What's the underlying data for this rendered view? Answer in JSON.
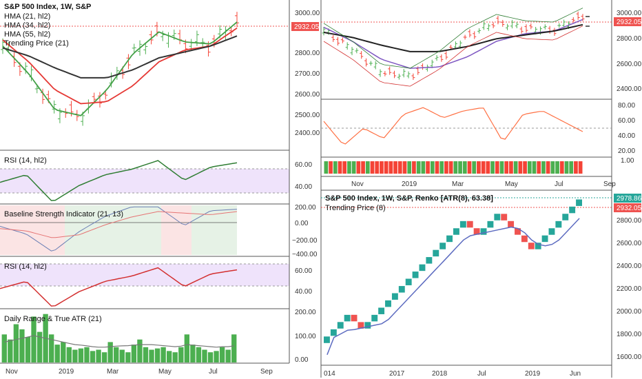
{
  "theme": {
    "up": "#26a69a",
    "down": "#ef5350",
    "bar_up": "#4caf50",
    "bar_down": "#f44336",
    "price_line": "#ef5350",
    "grid": "#d9d9d9"
  },
  "left_panel": {
    "title": "S&P 500 Index, 1W, S&P",
    "legend": [
      "HMA (21, hl2)",
      "HMA (34, hl2)",
      "HMA (55, hl2)",
      "Trending Price (21)"
    ],
    "price_label": "2932.05",
    "price_ticks": [
      "3000.00",
      "2900.00",
      "2800.00",
      "2700.00",
      "2600.00",
      "2500.00",
      "2400.00"
    ],
    "rsi_title": "RSI (14, hl2)",
    "rsi_ticks": [
      "60.00",
      "40.00"
    ],
    "bsi_title": "Baseline Strength Indicator (21, 13)",
    "bsi_ticks": [
      "200.00",
      "0.00",
      "−200.00",
      "−400.00"
    ],
    "rsi2_title": "RSI (14, hl2)",
    "rsi2_ticks": [
      "60.00",
      "40.00"
    ],
    "atr_title": "Daily Range & True ATR (21)",
    "atr_ticks": [
      "200.00",
      "100.00",
      "0.00"
    ],
    "time_ticks": [
      "Nov",
      "2019",
      "Mar",
      "May",
      "Jul",
      "Sep"
    ]
  },
  "right_top": {
    "price_label": "2932.05",
    "price_ticks": [
      "3000.00",
      "2800.00",
      "2600.00",
      "2400.00"
    ],
    "osc_ticks": [
      "80.00",
      "60.00",
      "40.00",
      "20.00"
    ],
    "hist_tick": "1.00",
    "time_ticks": [
      "Nov",
      "2019",
      "Mar",
      "May",
      "Jul",
      "Sep"
    ]
  },
  "right_bottom": {
    "title": "S&P 500 Index, 1W, S&P, Renko [ATR(8), 63.38]",
    "legend": "Trending Price (8)",
    "price_label_top": "2978.86",
    "price_label": "2932.05",
    "price_ticks": [
      "2800.00",
      "2600.00",
      "2400.00",
      "2200.00",
      "2000.00",
      "1800.00",
      "1600.00"
    ],
    "time_ticks": [
      "014",
      "2017",
      "2018",
      "Jul",
      "2019",
      "Jun"
    ]
  },
  "chart_data": [
    {
      "type": "line",
      "name": "S&P 500 weekly with HMA overlays (left main)",
      "x": [
        "Oct-18",
        "Nov-18",
        "Dec-18",
        "Jan-19",
        "Feb-19",
        "Mar-19",
        "Apr-19",
        "May-19",
        "Jun-19",
        "Jul-19"
      ],
      "series": [
        {
          "name": "HMA (21, hl2)",
          "values": [
            2840,
            2700,
            2520,
            2490,
            2620,
            2800,
            2910,
            2860,
            2850,
            2960
          ]
        },
        {
          "name": "HMA (34, hl2)",
          "values": [
            2870,
            2760,
            2620,
            2550,
            2560,
            2640,
            2760,
            2820,
            2840,
            2930
          ]
        },
        {
          "name": "HMA (55, hl2)",
          "values": [
            2830,
            2790,
            2730,
            2680,
            2680,
            2720,
            2780,
            2810,
            2840,
            2890
          ]
        }
      ],
      "last_price": 2932.05,
      "ylim": [
        2330,
        3050
      ]
    },
    {
      "type": "line",
      "name": "RSI (14, hl2)",
      "x": [
        "Oct-18",
        "Nov-18",
        "Dec-18",
        "Jan-19",
        "Feb-19",
        "Mar-19",
        "Apr-19",
        "May-19",
        "Jun-19",
        "Jul-19"
      ],
      "values": [
        48,
        55,
        30,
        45,
        55,
        60,
        68,
        50,
        62,
        66
      ],
      "ylim": [
        30,
        75
      ]
    },
    {
      "type": "line",
      "name": "Baseline Strength Indicator (21, 13)",
      "x": [
        "Oct-18",
        "Nov-18",
        "Dec-18",
        "Jan-19",
        "Feb-19",
        "Mar-19",
        "Apr-19",
        "May-19",
        "Jun-19",
        "Jul-19"
      ],
      "series": [
        {
          "name": "fast",
          "values": [
            -50,
            -150,
            -380,
            -120,
            80,
            200,
            200,
            -40,
            150,
            170
          ]
        },
        {
          "name": "slow",
          "values": [
            -80,
            -110,
            -200,
            -160,
            -30,
            70,
            140,
            120,
            100,
            140
          ]
        }
      ],
      "ylim": [
        -420,
        220
      ]
    },
    {
      "type": "bar",
      "name": "Daily Range & True ATR (21)",
      "values": [
        110,
        90,
        150,
        130,
        100,
        180,
        120,
        190,
        110,
        70,
        80,
        60,
        50,
        55,
        60,
        45,
        50,
        40,
        80,
        60,
        50,
        40,
        70,
        90,
        60,
        50,
        55,
        60,
        45,
        40,
        60,
        110,
        70,
        60,
        50,
        40,
        45,
        60,
        50,
        110
      ],
      "atr": [
        80,
        85,
        90,
        95,
        100,
        105,
        100,
        95,
        90,
        85,
        80,
        75,
        70,
        68,
        65,
        62,
        60,
        60,
        62,
        64,
        65,
        66,
        68,
        70,
        70,
        70,
        68,
        66,
        64,
        62,
        64,
        70,
        68,
        66,
        64,
        62,
        60,
        62,
        62,
        65
      ],
      "ylim": [
        0,
        200
      ]
    },
    {
      "type": "line",
      "name": "Renko ATR(8) bricks",
      "brick_size": 63.38,
      "values": [
        1790,
        1853,
        1917,
        1980,
        1917,
        1853,
        1917,
        1980,
        2043,
        2107,
        2170,
        2233,
        2297,
        2360,
        2423,
        2487,
        2550,
        2613,
        2677,
        2740,
        2803,
        2740,
        2677,
        2740,
        2803,
        2867,
        2803,
        2740,
        2677,
        2613,
        2550,
        2613,
        2677,
        2740,
        2803,
        2867,
        2930,
        2993
      ],
      "ylim": [
        1550,
        3050
      ]
    }
  ]
}
